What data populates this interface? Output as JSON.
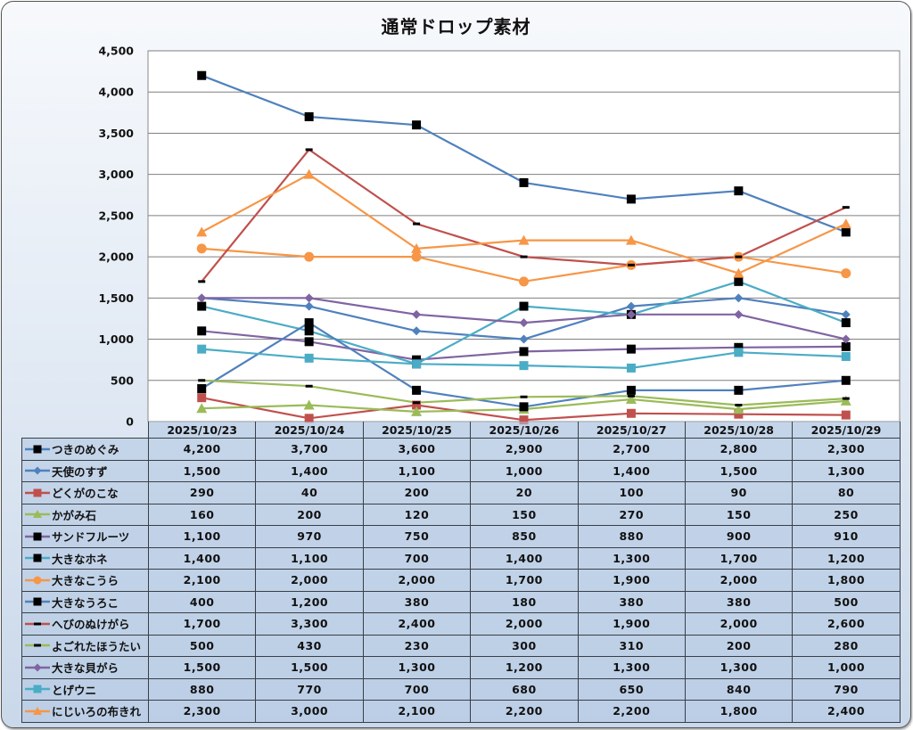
{
  "chart_data": {
    "type": "line",
    "title": "通常ドロップ素材",
    "xlabel": "",
    "ylabel": "",
    "ylim": [
      0,
      4500
    ],
    "yticks": [
      0,
      500,
      1000,
      1500,
      2000,
      2500,
      3000,
      3500,
      4000,
      4500
    ],
    "ytick_labels": [
      "0",
      "500",
      "1,000",
      "1,500",
      "2,000",
      "2,500",
      "3,000",
      "3,500",
      "4,000",
      "4,500"
    ],
    "grid": "horizontal",
    "legend": "data-table-left",
    "categories": [
      "2025/10/23",
      "2025/10/24",
      "2025/10/25",
      "2025/10/26",
      "2025/10/27",
      "2025/10/28",
      "2025/10/29"
    ],
    "series": [
      {
        "name": "つきのめぐみ",
        "color": "#4f81bd",
        "marker": "square",
        "marker_color": "#000000",
        "values": [
          4200,
          3700,
          3600,
          2900,
          2700,
          2800,
          2300
        ],
        "labels": [
          "4,200",
          "3,700",
          "3,600",
          "2,900",
          "2,700",
          "2,800",
          "2,300"
        ]
      },
      {
        "name": "天使のすず",
        "color": "#4f81bd",
        "marker": "diamond",
        "marker_color": "#4f81bd",
        "values": [
          1500,
          1400,
          1100,
          1000,
          1400,
          1500,
          1300
        ],
        "labels": [
          "1,500",
          "1,400",
          "1,100",
          "1,000",
          "1,400",
          "1,500",
          "1,300"
        ]
      },
      {
        "name": "どくがのこな",
        "color": "#c0504d",
        "marker": "square",
        "marker_color": "#c0504d",
        "values": [
          290,
          40,
          200,
          20,
          100,
          90,
          80
        ],
        "labels": [
          "290",
          "40",
          "200",
          "20",
          "100",
          "90",
          "80"
        ]
      },
      {
        "name": "かがみ石",
        "color": "#9bbb59",
        "marker": "triangle",
        "marker_color": "#9bbb59",
        "values": [
          160,
          200,
          120,
          150,
          270,
          150,
          250
        ],
        "labels": [
          "160",
          "200",
          "120",
          "150",
          "270",
          "150",
          "250"
        ]
      },
      {
        "name": "サンドフルーツ",
        "color": "#8064a2",
        "marker": "square",
        "marker_color": "#000000",
        "values": [
          1100,
          970,
          750,
          850,
          880,
          900,
          910
        ],
        "labels": [
          "1,100",
          "970",
          "750",
          "850",
          "880",
          "900",
          "910"
        ]
      },
      {
        "name": "大きなホネ",
        "color": "#4bacc6",
        "marker": "square",
        "marker_color": "#000000",
        "values": [
          1400,
          1100,
          700,
          1400,
          1300,
          1700,
          1200
        ],
        "labels": [
          "1,400",
          "1,100",
          "700",
          "1,400",
          "1,300",
          "1,700",
          "1,200"
        ]
      },
      {
        "name": "大きなこうら",
        "color": "#f79646",
        "marker": "circle",
        "marker_color": "#f79646",
        "values": [
          2100,
          2000,
          2000,
          1700,
          1900,
          2000,
          1800
        ],
        "labels": [
          "2,100",
          "2,000",
          "2,000",
          "1,700",
          "1,900",
          "2,000",
          "1,800"
        ]
      },
      {
        "name": "大きなうろこ",
        "color": "#4f81bd",
        "marker": "square",
        "marker_color": "#000000",
        "values": [
          400,
          1200,
          380,
          180,
          380,
          380,
          500
        ],
        "labels": [
          "400",
          "1,200",
          "380",
          "180",
          "380",
          "380",
          "500"
        ]
      },
      {
        "name": "へびのぬけがら",
        "color": "#c0504d",
        "marker": "dash",
        "marker_color": "#000000",
        "values": [
          1700,
          3300,
          2400,
          2000,
          1900,
          2000,
          2600
        ],
        "labels": [
          "1,700",
          "3,300",
          "2,400",
          "2,000",
          "1,900",
          "2,000",
          "2,600"
        ]
      },
      {
        "name": "よごれたほうたい",
        "color": "#9bbb59",
        "marker": "dash",
        "marker_color": "#000000",
        "values": [
          500,
          430,
          230,
          300,
          310,
          200,
          280
        ],
        "labels": [
          "500",
          "430",
          "230",
          "300",
          "310",
          "200",
          "280"
        ]
      },
      {
        "name": "大きな貝がら",
        "color": "#8064a2",
        "marker": "diamond",
        "marker_color": "#8064a2",
        "values": [
          1500,
          1500,
          1300,
          1200,
          1300,
          1300,
          1000
        ],
        "labels": [
          "1,500",
          "1,500",
          "1,300",
          "1,200",
          "1,300",
          "1,300",
          "1,000"
        ]
      },
      {
        "name": "とげウニ",
        "color": "#4bacc6",
        "marker": "square",
        "marker_color": "#4bacc6",
        "values": [
          880,
          770,
          700,
          680,
          650,
          840,
          790
        ],
        "labels": [
          "880",
          "770",
          "700",
          "680",
          "650",
          "840",
          "790"
        ]
      },
      {
        "name": "にじいろの布きれ",
        "color": "#f79646",
        "marker": "triangle",
        "marker_color": "#f79646",
        "values": [
          2300,
          3000,
          2100,
          2200,
          2200,
          1800,
          2400
        ],
        "labels": [
          "2,300",
          "3,000",
          "2,100",
          "2,200",
          "2,200",
          "1,800",
          "2,400"
        ]
      }
    ]
  }
}
